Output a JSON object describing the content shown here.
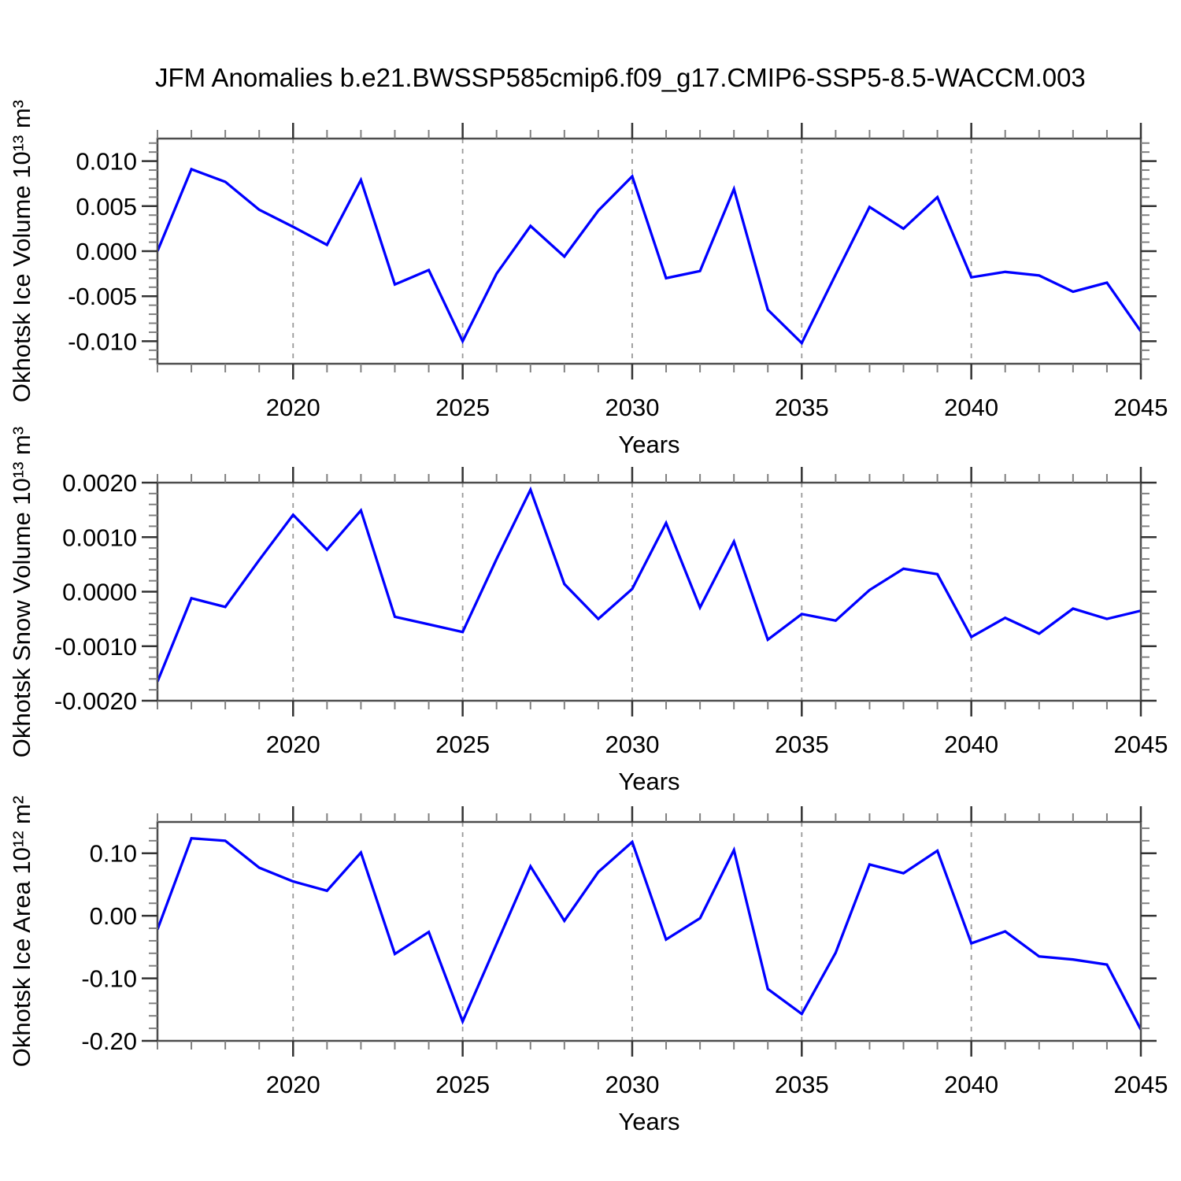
{
  "title": "JFM Anomalies b.e21.BWSSP585cmip6.f09_g17.CMIP6-SSP5-8.5-WACCM.003",
  "colors": {
    "line": "#0000ff",
    "axis": "#4d4d4d",
    "major_tick": "#333333",
    "minor_tick": "#808080",
    "grid": "#999999",
    "text": "#000000"
  },
  "chart_data": [
    {
      "type": "line",
      "name": "okhotsk-ice-volume",
      "ylabel": "Okhotsk Ice Volume 10¹³ m³",
      "xlabel": "Years",
      "xlim": [
        2016,
        2045
      ],
      "ylim": [
        -0.0125,
        0.0125
      ],
      "x": [
        2016,
        2017,
        2018,
        2019,
        2020,
        2021,
        2022,
        2023,
        2024,
        2025,
        2026,
        2027,
        2028,
        2029,
        2030,
        2031,
        2032,
        2033,
        2034,
        2035,
        2036,
        2037,
        2038,
        2039,
        2040,
        2041,
        2042,
        2043,
        2044,
        2045
      ],
      "values": [
        0.0,
        0.0091,
        0.0077,
        0.0046,
        0.0027,
        0.0007,
        0.0079,
        -0.0037,
        -0.0021,
        -0.01,
        -0.0025,
        0.0028,
        -0.0006,
        0.0045,
        0.0083,
        -0.003,
        -0.0022,
        0.0069,
        -0.0065,
        -0.0102,
        -0.0026,
        0.0049,
        0.0025,
        0.006,
        -0.0029,
        -0.0023,
        -0.0027,
        -0.0045,
        -0.0035,
        -0.0089
      ],
      "xticks": [
        {
          "v": 2020,
          "label": "2020"
        },
        {
          "v": 2025,
          "label": "2025"
        },
        {
          "v": 2030,
          "label": "2030"
        },
        {
          "v": 2035,
          "label": "2035"
        },
        {
          "v": 2040,
          "label": "2040"
        },
        {
          "v": 2045,
          "label": "2045"
        }
      ],
      "x_minor_step": 1,
      "yticks": [
        {
          "v": 0.01,
          "label": "0.010"
        },
        {
          "v": 0.005,
          "label": "0.005"
        },
        {
          "v": 0.0,
          "label": "0.000"
        },
        {
          "v": -0.005,
          "label": "-0.005"
        },
        {
          "v": -0.01,
          "label": "-0.010"
        }
      ],
      "y_minor_step": 0.001,
      "grid_x": [
        2020,
        2025,
        2030,
        2035,
        2040
      ],
      "line_color": "#0000ff",
      "grid_on": "x-dashed",
      "legend": "none"
    },
    {
      "type": "line",
      "name": "okhotsk-snow-volume",
      "ylabel": "Okhotsk Snow Volume 10¹³ m³",
      "xlabel": "Years",
      "xlim": [
        2016,
        2045
      ],
      "ylim": [
        -0.002,
        0.002
      ],
      "x": [
        2016,
        2017,
        2018,
        2019,
        2020,
        2021,
        2022,
        2023,
        2024,
        2025,
        2026,
        2027,
        2028,
        2029,
        2030,
        2031,
        2032,
        2033,
        2034,
        2035,
        2036,
        2037,
        2038,
        2039,
        2040,
        2041,
        2042,
        2043,
        2044,
        2045
      ],
      "values": [
        -0.00165,
        -0.00012,
        -0.00028,
        0.00058,
        0.00141,
        0.00077,
        0.00149,
        -0.00046,
        -0.0006,
        -0.00074,
        0.0006,
        0.00187,
        0.00014,
        -0.0005,
        5e-05,
        0.00126,
        -0.00029,
        0.00092,
        -0.00088,
        -0.00041,
        -0.00053,
        3e-05,
        0.00042,
        0.00032,
        -0.00083,
        -0.00048,
        -0.00077,
        -0.00031,
        -0.0005,
        -0.00035
      ],
      "xticks": [
        {
          "v": 2020,
          "label": "2020"
        },
        {
          "v": 2025,
          "label": "2025"
        },
        {
          "v": 2030,
          "label": "2030"
        },
        {
          "v": 2035,
          "label": "2035"
        },
        {
          "v": 2040,
          "label": "2040"
        },
        {
          "v": 2045,
          "label": "2045"
        }
      ],
      "x_minor_step": 1,
      "yticks": [
        {
          "v": 0.002,
          "label": "0.0020"
        },
        {
          "v": 0.001,
          "label": "0.0010"
        },
        {
          "v": 0.0,
          "label": "0.0000"
        },
        {
          "v": -0.001,
          "label": "-0.0010"
        },
        {
          "v": -0.002,
          "label": "-0.0020"
        }
      ],
      "y_minor_step": 0.0002,
      "grid_x": [
        2020,
        2025,
        2030,
        2035,
        2040
      ],
      "line_color": "#0000ff",
      "grid_on": "x-dashed",
      "legend": "none"
    },
    {
      "type": "line",
      "name": "okhotsk-ice-area",
      "ylabel": "Okhotsk Ice Area 10¹² m²",
      "xlabel": "Years",
      "xlim": [
        2016,
        2045
      ],
      "ylim": [
        -0.2,
        0.15
      ],
      "x": [
        2016,
        2017,
        2018,
        2019,
        2020,
        2021,
        2022,
        2023,
        2024,
        2025,
        2026,
        2027,
        2028,
        2029,
        2030,
        2031,
        2032,
        2033,
        2034,
        2035,
        2036,
        2037,
        2038,
        2039,
        2040,
        2041,
        2042,
        2043,
        2044,
        2045
      ],
      "values": [
        -0.022,
        0.124,
        0.12,
        0.077,
        0.055,
        0.04,
        0.101,
        -0.061,
        -0.026,
        -0.169,
        -0.045,
        0.079,
        -0.008,
        0.07,
        0.118,
        -0.038,
        -0.004,
        0.105,
        -0.117,
        -0.157,
        -0.059,
        0.082,
        0.068,
        0.104,
        -0.044,
        -0.025,
        -0.065,
        -0.07,
        -0.078,
        -0.182
      ],
      "xticks": [
        {
          "v": 2020,
          "label": "2020"
        },
        {
          "v": 2025,
          "label": "2025"
        },
        {
          "v": 2030,
          "label": "2030"
        },
        {
          "v": 2035,
          "label": "2035"
        },
        {
          "v": 2040,
          "label": "2040"
        },
        {
          "v": 2045,
          "label": "2045"
        }
      ],
      "x_minor_step": 1,
      "yticks": [
        {
          "v": 0.1,
          "label": "0.10"
        },
        {
          "v": 0.0,
          "label": "0.00"
        },
        {
          "v": -0.1,
          "label": "-0.10"
        },
        {
          "v": -0.2,
          "label": "-0.20"
        }
      ],
      "y_minor_step": 0.02,
      "grid_x": [
        2020,
        2025,
        2030,
        2035,
        2040
      ],
      "line_color": "#0000ff",
      "grid_on": "x-dashed",
      "legend": "none"
    }
  ]
}
